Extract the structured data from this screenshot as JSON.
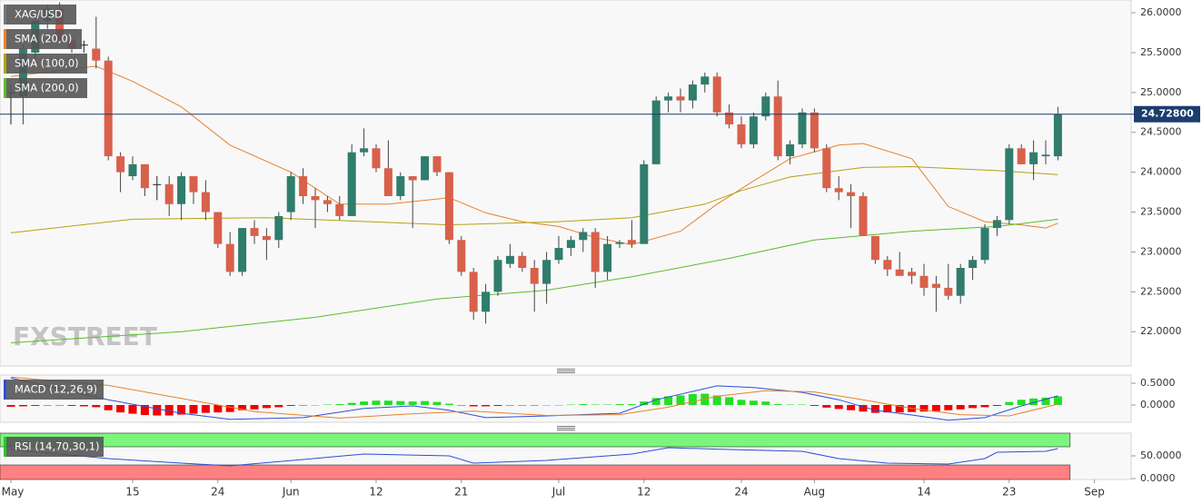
{
  "chart_data": [
    {
      "type": "candlestick",
      "name": "XAG/USD",
      "watermark": "FXSTREET",
      "up_color": "#2f7d6d",
      "down_color": "#d9604a",
      "xticks": [
        {
          "value": 0,
          "label": "May"
        },
        {
          "value": 10,
          "label": "15"
        },
        {
          "value": 17,
          "label": "24"
        },
        {
          "value": 23,
          "label": "Jun"
        },
        {
          "value": 30,
          "label": "12"
        },
        {
          "value": 37,
          "label": "21"
        },
        {
          "value": 45,
          "label": "Jul"
        },
        {
          "value": 52,
          "label": "12"
        },
        {
          "value": 60,
          "label": "24"
        },
        {
          "value": 66,
          "label": "Aug"
        },
        {
          "value": 75,
          "label": "14"
        },
        {
          "value": 82,
          "label": "23"
        },
        {
          "value": 89,
          "label": "Sep"
        }
      ],
      "ylim": [
        21.57,
        26.16
      ],
      "yticks": [
        {
          "value": 22,
          "label": "22.0000"
        },
        {
          "value": 22.5,
          "label": "22.5000"
        },
        {
          "value": 23,
          "label": "23.0000"
        },
        {
          "value": 23.5,
          "label": "23.5000"
        },
        {
          "value": 24,
          "label": "24.0000"
        },
        {
          "value": 24.5,
          "label": "24.5000"
        },
        {
          "value": 25,
          "label": "25.0000"
        },
        {
          "value": 25.5,
          "label": "25.5000"
        },
        {
          "value": 26,
          "label": "26.0000"
        }
      ],
      "open": [
        25.0,
        24.95,
        25.5,
        25.9,
        26.05,
        25.65,
        25.6,
        25.55,
        25.4,
        24.2,
        23.95,
        24.1,
        23.85,
        23.85,
        23.6,
        23.95,
        23.75,
        23.5,
        23.1,
        22.75,
        23.3,
        23.2,
        23.15,
        23.5,
        23.95,
        23.7,
        23.65,
        23.6,
        23.45,
        24.25,
        24.3,
        24.05,
        23.7,
        23.95,
        23.9,
        24.2,
        24.0,
        23.15,
        22.75,
        22.25,
        22.5,
        22.85,
        22.95,
        22.8,
        22.6,
        22.9,
        23.05,
        23.15,
        23.25,
        22.75,
        23.1,
        23.15,
        23.1,
        24.1,
        24.9,
        24.95,
        24.9,
        25.1,
        25.2,
        24.75,
        24.6,
        24.35,
        24.7,
        24.95,
        24.2,
        24.35,
        24.75,
        24.3,
        23.8,
        23.75,
        23.7,
        23.2,
        22.9,
        22.78,
        22.75,
        22.7,
        22.6,
        22.55,
        22.45,
        22.8,
        22.9,
        23.3,
        23.4,
        24.3,
        24.1,
        24.2,
        24.2
      ],
      "high": [
        25.1,
        25.6,
        26.0,
        26.1,
        26.13,
        25.7,
        25.65,
        25.95,
        25.45,
        24.25,
        24.2,
        24.1,
        23.95,
        23.95,
        24.0,
        23.95,
        23.9,
        23.5,
        23.25,
        23.3,
        23.4,
        23.3,
        23.5,
        24.0,
        24.05,
        23.8,
        23.7,
        23.7,
        24.35,
        24.55,
        24.35,
        24.4,
        24.0,
        23.95,
        24.2,
        24.2,
        24.0,
        23.2,
        22.8,
        22.6,
        22.95,
        23.1,
        23.0,
        22.9,
        23.0,
        23.2,
        23.2,
        23.3,
        23.3,
        23.2,
        23.15,
        23.4,
        24.15,
        24.95,
        25.0,
        25.05,
        25.15,
        25.25,
        25.25,
        24.85,
        24.7,
        24.75,
        25.0,
        25.15,
        24.4,
        24.8,
        24.8,
        24.35,
        23.95,
        23.85,
        23.75,
        23.2,
        22.95,
        23.0,
        22.8,
        22.85,
        22.7,
        22.85,
        22.85,
        22.95,
        23.35,
        23.45,
        24.35,
        24.35,
        24.4,
        24.4,
        24.82
      ],
      "low": [
        24.6,
        24.6,
        25.4,
        25.8,
        25.6,
        25.5,
        25.5,
        25.3,
        24.15,
        23.75,
        23.9,
        23.7,
        23.65,
        23.45,
        23.4,
        23.6,
        23.4,
        23.05,
        22.7,
        22.7,
        23.1,
        22.9,
        23.05,
        23.4,
        23.6,
        23.3,
        23.5,
        23.4,
        23.45,
        24.2,
        24.0,
        23.7,
        23.65,
        23.3,
        23.9,
        23.95,
        23.1,
        22.7,
        22.15,
        22.1,
        22.45,
        22.8,
        22.75,
        22.25,
        22.35,
        22.85,
        22.95,
        23.0,
        22.55,
        22.65,
        23.05,
        23.05,
        23.1,
        24.1,
        24.75,
        24.75,
        24.8,
        25.0,
        24.7,
        24.55,
        24.3,
        24.3,
        24.65,
        24.15,
        24.1,
        24.3,
        24.25,
        23.75,
        23.65,
        23.3,
        23.2,
        22.85,
        22.7,
        22.7,
        22.6,
        22.45,
        22.25,
        22.4,
        22.35,
        22.65,
        22.85,
        23.2,
        23.35,
        24.1,
        23.9,
        24.1,
        24.15
      ],
      "close": [
        25.0,
        25.55,
        25.9,
        26.05,
        25.65,
        25.55,
        25.6,
        25.4,
        24.2,
        24.0,
        24.1,
        23.8,
        23.85,
        23.6,
        23.95,
        23.75,
        23.5,
        23.1,
        22.75,
        23.3,
        23.2,
        23.15,
        23.45,
        23.95,
        23.7,
        23.65,
        23.6,
        23.45,
        24.25,
        24.3,
        24.05,
        23.7,
        23.95,
        23.9,
        24.2,
        24.0,
        23.15,
        22.75,
        22.25,
        22.5,
        22.9,
        22.95,
        22.8,
        22.6,
        22.9,
        23.05,
        23.15,
        23.25,
        22.75,
        23.1,
        23.12,
        23.1,
        24.1,
        24.9,
        24.95,
        24.9,
        25.1,
        25.2,
        24.75,
        24.6,
        24.35,
        24.7,
        24.95,
        24.2,
        24.35,
        24.75,
        24.3,
        23.8,
        23.75,
        23.7,
        23.2,
        22.9,
        22.78,
        22.7,
        22.7,
        22.55,
        22.55,
        22.45,
        22.8,
        22.9,
        23.3,
        23.4,
        24.3,
        24.1,
        24.25,
        24.22,
        24.728
      ],
      "annotations": [
        {
          "value": 24.728,
          "label": "24.72800",
          "color": "#1c3d6e"
        }
      ],
      "series": [
        {
          "name": "SMA (20,0)",
          "color": "#e8822a",
          "x": [
            0,
            7,
            10,
            14,
            18,
            23,
            27,
            31,
            36,
            39,
            42,
            45,
            48,
            51,
            55,
            58,
            61,
            64,
            68,
            70,
            74,
            77,
            80,
            83,
            85,
            86
          ],
          "values": [
            25.2,
            25.33,
            25.14,
            24.82,
            24.34,
            24.0,
            23.6,
            23.6,
            23.68,
            23.49,
            23.38,
            23.32,
            23.18,
            23.09,
            23.26,
            23.6,
            23.89,
            24.17,
            24.34,
            24.36,
            24.17,
            23.57,
            23.38,
            23.34,
            23.3,
            23.36
          ]
        },
        {
          "name": "SMA (100,0)",
          "color": "#b3a20f",
          "x": [
            0,
            10,
            21,
            36,
            45,
            51,
            57,
            60,
            64,
            70,
            74,
            81,
            86
          ],
          "values": [
            23.24,
            23.41,
            23.43,
            23.34,
            23.38,
            23.43,
            23.6,
            23.77,
            23.94,
            24.06,
            24.07,
            24.02,
            23.97
          ]
        },
        {
          "name": "SMA (200,0)",
          "color": "#5cbc2c",
          "x": [
            0,
            14,
            25,
            35,
            44,
            51,
            59,
            66,
            74,
            81,
            86
          ],
          "values": [
            21.86,
            22.0,
            22.18,
            22.41,
            22.52,
            22.69,
            22.92,
            23.15,
            23.26,
            23.32,
            23.41
          ]
        }
      ]
    },
    {
      "type": "macd",
      "label": "MACD (12,26,9)",
      "label_color": "#2b4fd8",
      "ylim": [
        -0.396,
        0.688
      ],
      "yticks": [
        {
          "value": 0,
          "label": "0.0000"
        },
        {
          "value": 0.5,
          "label": "0.5000"
        }
      ],
      "histogram": {
        "up_color": "#22e022",
        "down_color": "#f00000",
        "values": [
          -0.04,
          -0.03,
          -0.02,
          -0.01,
          -0.01,
          -0.02,
          -0.03,
          -0.05,
          -0.12,
          -0.17,
          -0.2,
          -0.23,
          -0.24,
          -0.24,
          -0.22,
          -0.2,
          -0.18,
          -0.17,
          -0.16,
          -0.12,
          -0.1,
          -0.07,
          -0.05,
          -0.02,
          -0.01,
          0.0,
          0.01,
          0.02,
          0.05,
          0.08,
          0.1,
          0.1,
          0.09,
          0.08,
          0.09,
          0.07,
          0.03,
          -0.01,
          -0.03,
          -0.03,
          -0.02,
          -0.01,
          -0.01,
          -0.01,
          0.0,
          0.0,
          0.01,
          0.02,
          0.01,
          0.01,
          0.02,
          0.02,
          0.08,
          0.16,
          0.2,
          0.22,
          0.25,
          0.26,
          0.22,
          0.18,
          0.12,
          0.1,
          0.08,
          0.02,
          0.01,
          0.01,
          -0.02,
          -0.06,
          -0.09,
          -0.12,
          -0.15,
          -0.18,
          -0.17,
          -0.17,
          -0.16,
          -0.15,
          -0.14,
          -0.12,
          -0.1,
          -0.07,
          -0.05,
          -0.02,
          0.07,
          0.12,
          0.15,
          0.17,
          0.2
        ]
      },
      "series": [
        {
          "color": "#2b4fd8",
          "x": [
            0,
            8,
            14,
            18,
            24,
            29,
            33,
            36,
            39,
            44,
            50,
            53,
            58,
            61,
            65,
            68,
            71,
            74,
            77,
            80,
            83,
            86
          ],
          "values": [
            0.62,
            0.12,
            -0.19,
            -0.33,
            -0.29,
            -0.08,
            -0.02,
            -0.12,
            -0.29,
            -0.25,
            -0.19,
            0.12,
            0.44,
            0.4,
            0.29,
            0.12,
            -0.12,
            -0.23,
            -0.35,
            -0.29,
            -0.02,
            0.21
          ]
        },
        {
          "color": "#e8822a",
          "x": [
            0,
            8,
            14,
            20,
            27,
            33,
            38,
            44,
            50,
            54,
            58,
            62,
            66,
            70,
            74,
            78,
            82,
            86
          ],
          "values": [
            0.64,
            0.45,
            0.15,
            -0.15,
            -0.3,
            -0.2,
            -0.14,
            -0.24,
            -0.22,
            -0.05,
            0.2,
            0.33,
            0.3,
            0.12,
            -0.08,
            -0.22,
            -0.25,
            0.02
          ]
        }
      ]
    },
    {
      "type": "rsi",
      "label": "RSI (14,70,30,1)",
      "label_color": "#22cc22",
      "ylim": [
        -2,
        100
      ],
      "yticks": [
        {
          "value": 0,
          "label": "0.0000"
        },
        {
          "value": 50,
          "label": "50.0000"
        }
      ],
      "bands": [
        {
          "from": 70,
          "to": 100,
          "color": "#7cf57c"
        },
        {
          "from": 0,
          "to": 30,
          "color": "#ff8080"
        }
      ],
      "series": [
        {
          "color": "#2b4fd8",
          "x": [
            0,
            8,
            14,
            18,
            24,
            29,
            36,
            38,
            44,
            51,
            54,
            59,
            65,
            68,
            72,
            77,
            80,
            81,
            85,
            86
          ],
          "values": [
            64,
            44,
            34,
            28,
            42,
            54,
            50,
            34,
            40,
            54,
            68,
            64,
            60,
            44,
            34,
            32,
            44,
            58,
            60,
            66
          ]
        }
      ]
    }
  ]
}
